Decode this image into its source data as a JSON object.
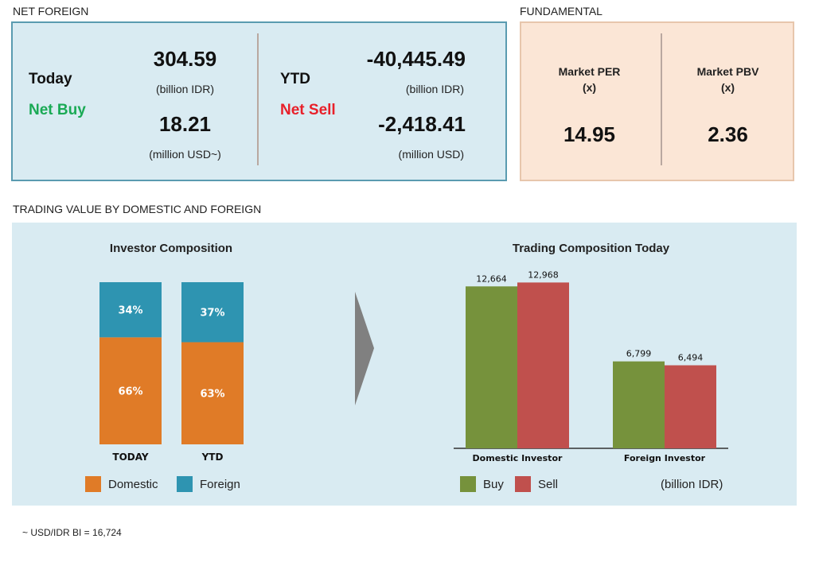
{
  "net_foreign": {
    "title": "NET FOREIGN",
    "today": {
      "label": "Today",
      "status": "Net Buy",
      "status_color": "#1aaa55",
      "value_idr": "304.59",
      "unit_idr": "(billion IDR)",
      "value_usd": "18.21",
      "unit_usd": "(million USD~)"
    },
    "ytd": {
      "label": "YTD",
      "status": "Net Sell",
      "status_color": "#e8202a",
      "value_idr": "-40,445.49",
      "unit_idr": "(billion IDR)",
      "value_usd": "-2,418.41",
      "unit_usd": "(million USD)"
    }
  },
  "fundamental": {
    "title": "FUNDAMENTAL",
    "per": {
      "label": "Market PER",
      "unit": "(x)",
      "value": "14.95"
    },
    "pbv": {
      "label": "Market PBV",
      "unit": "(x)",
      "value": "2.36"
    }
  },
  "trading": {
    "title": "TRADING VALUE BY DOMESTIC AND FOREIGN"
  },
  "footnote": "~ USD/IDR BI = 16,724",
  "colors": {
    "domestic": "#e07b27",
    "foreign": "#2e94b1",
    "buy": "#76923c",
    "sell": "#c0504d",
    "arrow": "#808080"
  },
  "chart_data": [
    {
      "type": "bar",
      "stacked": true,
      "normalized": true,
      "title": "Investor Composition",
      "categories": [
        "TODAY",
        "YTD"
      ],
      "series": [
        {
          "name": "Domestic",
          "values": [
            66,
            63
          ],
          "labels": [
            "66%",
            "63%"
          ]
        },
        {
          "name": "Foreign",
          "values": [
            34,
            37
          ],
          "labels": [
            "34%",
            "37%"
          ]
        }
      ],
      "ylim": [
        0,
        100
      ],
      "legend": "bottom"
    },
    {
      "type": "bar",
      "title": "Trading Composition Today",
      "categories": [
        "Domestic Investor",
        "Foreign Investor"
      ],
      "series": [
        {
          "name": "Buy",
          "values": [
            12664,
            6799
          ],
          "labels": [
            "12,664",
            "6,799"
          ]
        },
        {
          "name": "Sell",
          "values": [
            12968,
            6494
          ],
          "labels": [
            "12,968",
            "6,494"
          ]
        }
      ],
      "unit_label": "(billion IDR)",
      "ylim": [
        0,
        13800
      ],
      "legend": "bottom"
    }
  ]
}
